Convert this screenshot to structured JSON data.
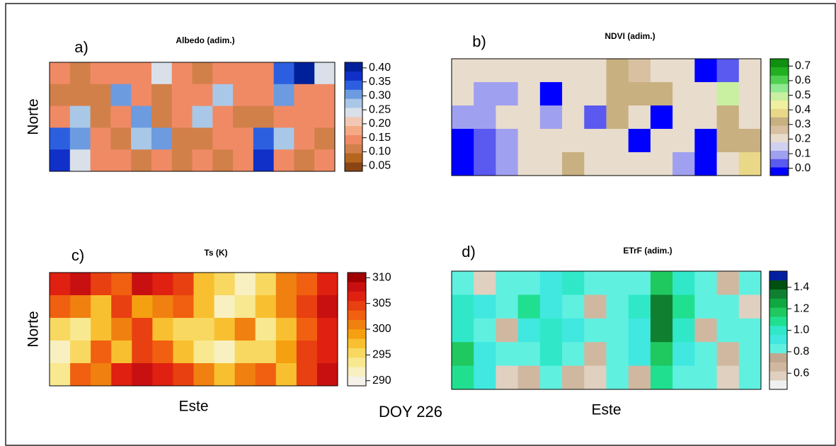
{
  "chart_data": [
    {
      "type": "heatmap",
      "label": "a)",
      "title": "Albedo (adim.)",
      "ylabel": "Norte",
      "values": [
        [
          0.15,
          0.12,
          0.15,
          0.15,
          0.15,
          0.25,
          0.15,
          0.12,
          0.15,
          0.15,
          0.15,
          0.35,
          0.4,
          0.25
        ],
        [
          0.1,
          0.1,
          0.12,
          0.3,
          0.15,
          0.12,
          0.15,
          0.15,
          0.28,
          0.15,
          0.15,
          0.3,
          0.15,
          0.15
        ],
        [
          0.15,
          0.28,
          0.12,
          0.15,
          0.3,
          0.12,
          0.15,
          0.28,
          0.15,
          0.12,
          0.1,
          0.15,
          0.15,
          0.15
        ],
        [
          0.35,
          0.3,
          0.15,
          0.12,
          0.28,
          0.3,
          0.12,
          0.12,
          0.15,
          0.15,
          0.35,
          0.28,
          0.15,
          0.12
        ],
        [
          0.38,
          0.25,
          0.15,
          0.15,
          0.12,
          0.15,
          0.12,
          0.15,
          0.12,
          0.15,
          0.38,
          0.15,
          0.12,
          0.15
        ]
      ],
      "colors": [
        "#8b4513",
        "#b5651d",
        "#d2804a",
        "#f08a65",
        "#f5aa85",
        "#f2c8b5",
        "#d9e0ea",
        "#a9c8e8",
        "#6c9be0",
        "#2c5fe0",
        "#1030c8",
        "#00209a"
      ],
      "clim": [
        0.03,
        0.42
      ],
      "cticks": [
        0.05,
        {
          "value": 0.1,
          "label": "0.10"
        },
        0.15,
        {
          "value": 0.2,
          "label": "0.20"
        },
        0.25,
        {
          "value": 0.3,
          "label": "0.30"
        },
        0.35,
        {
          "value": 0.4,
          "label": "0.40"
        }
      ]
    },
    {
      "type": "heatmap",
      "label": "b)",
      "title": "NDVI (adim.)",
      "values": [
        [
          0.2,
          0.2,
          0.2,
          0.2,
          0.2,
          0.2,
          0.2,
          0.3,
          0.25,
          0.2,
          0.2,
          0.0,
          0.05,
          0.2
        ],
        [
          0.2,
          0.1,
          0.1,
          0.2,
          0.0,
          0.2,
          0.2,
          0.3,
          0.3,
          0.3,
          0.2,
          0.2,
          0.5,
          0.2
        ],
        [
          0.1,
          0.1,
          0.2,
          0.2,
          0.1,
          0.2,
          0.05,
          0.3,
          0.2,
          0.0,
          0.2,
          0.2,
          0.3,
          0.2
        ],
        [
          0.0,
          0.05,
          0.1,
          0.2,
          0.2,
          0.2,
          0.2,
          0.2,
          0.0,
          0.2,
          0.2,
          0.0,
          0.3,
          0.3
        ],
        [
          0.0,
          0.05,
          0.1,
          0.2,
          0.2,
          0.3,
          0.2,
          0.2,
          0.2,
          0.2,
          0.1,
          0.0,
          0.2,
          0.4
        ]
      ],
      "colors": [
        "#0000ff",
        "#5a5af0",
        "#a0a0f0",
        "#d0d0f0",
        "#e8dccc",
        "#d8c0a0",
        "#c8b080",
        "#e8d888",
        "#f0f0a0",
        "#c8f0a0",
        "#90e890",
        "#50d050",
        "#20b020",
        "#109010"
      ],
      "clim": [
        -0.05,
        0.75
      ],
      "cticks": [
        {
          "value": 0,
          "label": "0.0"
        },
        0.1,
        0.2,
        0.3,
        0.4,
        0.5,
        0.6,
        0.7
      ]
    },
    {
      "type": "heatmap",
      "label": "c)",
      "title": "Ts (K)",
      "ylabel": "Norte",
      "xlabel": "Este",
      "values": [
        [
          306,
          308,
          304,
          303,
          309,
          306,
          304,
          298,
          295,
          292,
          296,
          300,
          302,
          307
        ],
        [
          302,
          300,
          297,
          305,
          299,
          301,
          303,
          297,
          292,
          294,
          298,
          301,
          305,
          308
        ],
        [
          296,
          294,
          298,
          300,
          304,
          298,
          296,
          295,
          298,
          300,
          293,
          297,
          303,
          306
        ],
        [
          292,
          295,
          303,
          297,
          304,
          302,
          298,
          294,
          291,
          296,
          295,
          299,
          304,
          307
        ],
        [
          294,
          302,
          300,
          306,
          308,
          307,
          305,
          300,
          297,
          300,
          302,
          298,
          305,
          308
        ]
      ],
      "colors": [
        "#f5f0e8",
        "#f8f0c0",
        "#f8e890",
        "#f8d860",
        "#f8c030",
        "#f5a010",
        "#f08010",
        "#f06010",
        "#e84010",
        "#e02010",
        "#c81010",
        "#a00000"
      ],
      "clim": [
        289,
        311
      ],
      "cticks": [
        290,
        295,
        300,
        305,
        310
      ]
    },
    {
      "type": "heatmap",
      "label": "d)",
      "title": "ETrF (adim.)",
      "xlabel": "Este",
      "values": [
        [
          0.8,
          0.6,
          0.8,
          0.8,
          0.9,
          1.0,
          0.8,
          0.8,
          0.8,
          1.2,
          1.0,
          0.8,
          0.7,
          0.8
        ],
        [
          1.0,
          0.9,
          0.8,
          1.1,
          0.9,
          0.8,
          0.7,
          0.8,
          1.0,
          1.3,
          1.1,
          0.8,
          0.8,
          0.6
        ],
        [
          1.0,
          0.8,
          0.7,
          0.9,
          1.0,
          0.9,
          0.8,
          0.8,
          0.9,
          1.3,
          1.0,
          0.7,
          0.8,
          0.8
        ],
        [
          1.2,
          0.9,
          0.8,
          0.8,
          1.0,
          0.8,
          0.7,
          0.8,
          0.9,
          1.2,
          0.9,
          0.8,
          0.7,
          0.8
        ],
        [
          1.1,
          0.9,
          0.6,
          0.7,
          0.8,
          0.7,
          0.6,
          0.8,
          0.7,
          1.1,
          0.8,
          0.8,
          0.6,
          0.8
        ]
      ],
      "colors": [
        "#f0f0f0",
        "#e0d0c0",
        "#d0b8a0",
        "#c0a890",
        "#60f0e0",
        "#40e8e0",
        "#30e8c8",
        "#20e090",
        "#20c860",
        "#10a840",
        "#108030",
        "#005010",
        "#0020a0"
      ],
      "clim": [
        0.45,
        1.55
      ],
      "cticks": [
        0.6,
        0.8,
        {
          "value": 1,
          "label": "1.0"
        },
        1.2,
        1.4
      ]
    }
  ],
  "annotation": "DOY 226"
}
